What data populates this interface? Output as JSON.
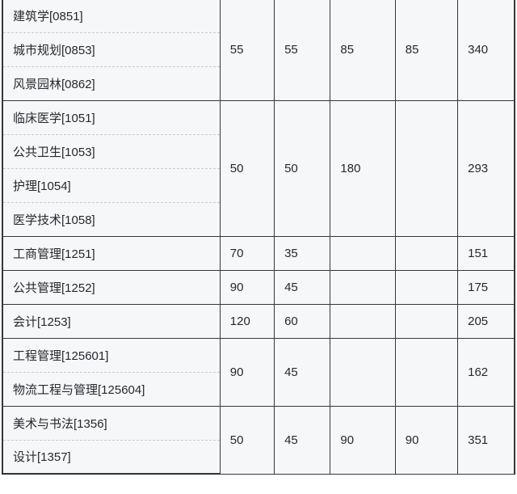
{
  "table": {
    "description_columns": 6,
    "groups": [
      {
        "subjects": [
          "建筑学[0851]",
          "城市规划[0853]",
          "风景园林[0862]"
        ],
        "values": [
          "55",
          "55",
          "85",
          "85",
          "340"
        ]
      },
      {
        "subjects": [
          "临床医学[1051]",
          "公共卫生[1053]",
          "护理[1054]",
          "医学技术[1058]"
        ],
        "values": [
          "50",
          "50",
          "180",
          "",
          "293"
        ]
      },
      {
        "subjects": [
          "工商管理[1251]"
        ],
        "values": [
          "70",
          "35",
          "",
          "",
          "151"
        ]
      },
      {
        "subjects": [
          "公共管理[1252]"
        ],
        "values": [
          "90",
          "45",
          "",
          "",
          "175"
        ]
      },
      {
        "subjects": [
          "会计[1253]"
        ],
        "values": [
          "120",
          "60",
          "",
          "",
          "205"
        ]
      },
      {
        "subjects": [
          "工程管理[125601]",
          "物流工程与管理[125604]"
        ],
        "values": [
          "90",
          "45",
          "",
          "",
          "162"
        ]
      },
      {
        "subjects": [
          "美术与书法[1356]",
          "设计[1357]"
        ],
        "values": [
          "50",
          "45",
          "90",
          "90",
          "351"
        ]
      }
    ]
  },
  "colors": {
    "cell_background": "#f6f7f9",
    "solid_border": "#35373b",
    "dashed_border": "#c6cad1",
    "text": "#26282c",
    "page_background": "#ffffff"
  }
}
